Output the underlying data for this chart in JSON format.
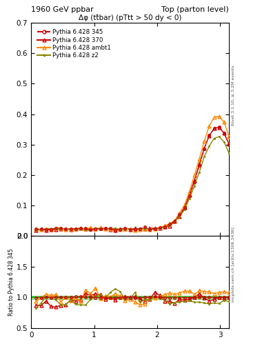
{
  "title_left": "1960 GeV ppbar",
  "title_right": "Top (parton level)",
  "plot_title": "Δφ (tt̄bar) (pTtt > 50 dy < 0)",
  "ylabel_ratio": "Ratio to Pythia 6.428 345",
  "right_label_top": "Rivet 3.1.10, ≥ 3.2M events",
  "right_label_bottom": "mcplots.cern.ch [arXiv:1306.3436]",
  "xlim": [
    0,
    3.14159
  ],
  "ylim_main": [
    0,
    0.7
  ],
  "ylim_ratio": [
    0.5,
    2.0
  ],
  "yticks_main": [
    0.0,
    0.1,
    0.2,
    0.3,
    0.4,
    0.5,
    0.6,
    0.7
  ],
  "yticks_ratio": [
    0.5,
    1.0,
    1.5,
    2.0
  ],
  "series": [
    {
      "label": "Pythia 6.428 345",
      "color": "#cc0000",
      "marker": "o",
      "linestyle": "--",
      "markersize": 2.5,
      "linewidth": 0.8,
      "is_ref": true
    },
    {
      "label": "Pythia 6.428 370",
      "color": "#cc0000",
      "marker": "^",
      "linestyle": "-",
      "markersize": 3.5,
      "linewidth": 1.0,
      "is_ref": false
    },
    {
      "label": "Pythia 6.428 ambt1",
      "color": "#ff8800",
      "marker": "^",
      "linestyle": "-",
      "markersize": 3.5,
      "linewidth": 1.0,
      "is_ref": false
    },
    {
      "label": "Pythia 6.428 z2",
      "color": "#888800",
      "marker": ".",
      "linestyle": "-",
      "markersize": 2.5,
      "linewidth": 1.0,
      "is_ref": false
    }
  ],
  "n_points": 40,
  "x_max": 3.14159,
  "seed": 12345
}
